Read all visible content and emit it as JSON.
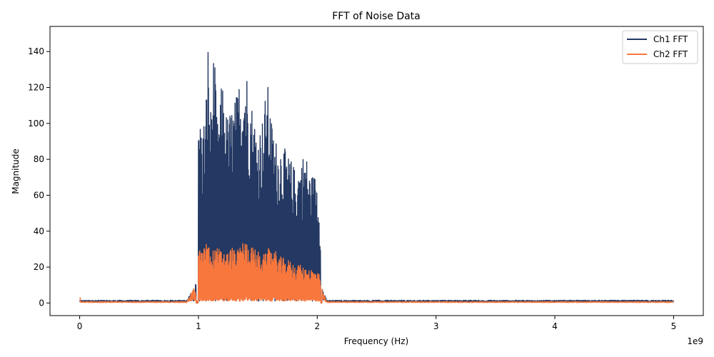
{
  "chart_data": {
    "type": "line",
    "title": "FFT of Noise Data",
    "xlabel": "Frequency (Hz)",
    "ylabel": "Magnitude",
    "x_offset_label": "1e9",
    "xlim": [
      -0.25,
      5.25
    ],
    "ylim": [
      -7,
      154
    ],
    "x_ticks": [
      0,
      1,
      2,
      3,
      4,
      5
    ],
    "x_tick_labels": [
      "0",
      "1",
      "2",
      "3",
      "4",
      "5"
    ],
    "y_ticks": [
      0,
      20,
      40,
      60,
      80,
      100,
      120,
      140
    ],
    "y_tick_labels": [
      "0",
      "20",
      "40",
      "60",
      "80",
      "100",
      "120",
      "140"
    ],
    "grid": false,
    "legend_position": "top-right",
    "series": [
      {
        "name": "Ch1 FFT",
        "color": "#233862",
        "peaks": [
          [
            1.0,
            110
          ],
          [
            1.03,
            98
          ],
          [
            1.06,
            108
          ],
          [
            1.08,
            148
          ],
          [
            1.1,
            104
          ],
          [
            1.13,
            144
          ],
          [
            1.16,
            100
          ],
          [
            1.2,
            125
          ],
          [
            1.24,
            104
          ],
          [
            1.28,
            110
          ],
          [
            1.32,
            116
          ],
          [
            1.35,
            128
          ],
          [
            1.38,
            132
          ],
          [
            1.4,
            134
          ],
          [
            1.42,
            124
          ],
          [
            1.46,
            108
          ],
          [
            1.5,
            96
          ],
          [
            1.54,
            104
          ],
          [
            1.58,
            124
          ],
          [
            1.62,
            100
          ],
          [
            1.66,
            90
          ],
          [
            1.7,
            90
          ],
          [
            1.74,
            84
          ],
          [
            1.78,
            80
          ],
          [
            1.82,
            74
          ],
          [
            1.86,
            80
          ],
          [
            1.9,
            86
          ],
          [
            1.93,
            74
          ],
          [
            1.96,
            72
          ],
          [
            2.0,
            72
          ],
          [
            2.03,
            48
          ]
        ],
        "baseline": 1.2
      },
      {
        "name": "Ch2 FFT",
        "color": "#f8773d",
        "peaks": [
          [
            1.0,
            30
          ],
          [
            1.04,
            29
          ],
          [
            1.07,
            37
          ],
          [
            1.1,
            28
          ],
          [
            1.14,
            31
          ],
          [
            1.2,
            30
          ],
          [
            1.24,
            28
          ],
          [
            1.28,
            32
          ],
          [
            1.32,
            28
          ],
          [
            1.36,
            34
          ],
          [
            1.4,
            35
          ],
          [
            1.44,
            32
          ],
          [
            1.48,
            30
          ],
          [
            1.52,
            28
          ],
          [
            1.56,
            27
          ],
          [
            1.6,
            32
          ],
          [
            1.64,
            30
          ],
          [
            1.68,
            26
          ],
          [
            1.72,
            25
          ],
          [
            1.76,
            24
          ],
          [
            1.8,
            22
          ],
          [
            1.84,
            22
          ],
          [
            1.88,
            20
          ],
          [
            1.92,
            20
          ],
          [
            1.96,
            19
          ],
          [
            2.0,
            18
          ],
          [
            2.03,
            14
          ]
        ],
        "baseline": 0.6
      }
    ]
  }
}
